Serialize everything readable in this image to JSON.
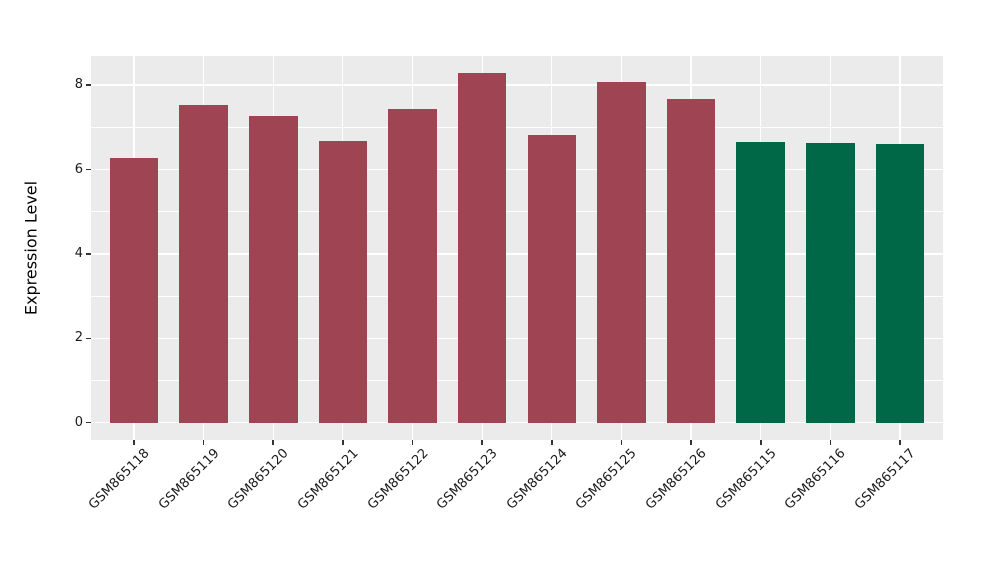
{
  "chart_data": {
    "type": "bar",
    "title": "",
    "xlabel": "",
    "ylabel": "Expression Level",
    "categories": [
      "GSM865118",
      "GSM865119",
      "GSM865120",
      "GSM865121",
      "GSM865122",
      "GSM865123",
      "GSM865124",
      "GSM865125",
      "GSM865126",
      "GSM865115",
      "GSM865116",
      "GSM865117"
    ],
    "values": [
      6.28,
      7.53,
      7.27,
      6.68,
      7.43,
      8.28,
      6.82,
      8.08,
      7.68,
      6.66,
      6.63,
      6.61
    ],
    "bar_colors": [
      "#9E4452",
      "#9E4452",
      "#9E4452",
      "#9E4452",
      "#9E4452",
      "#9E4452",
      "#9E4452",
      "#9E4452",
      "#9E4452",
      "#006747",
      "#006747",
      "#006747"
    ],
    "y_ticks": [
      0,
      2,
      4,
      6,
      8
    ],
    "y_minor_ticks": [
      1,
      3,
      5,
      7
    ],
    "ylim": [
      -0.41,
      8.69
    ],
    "grid": true,
    "legend": false,
    "x_tick_rotation": 45,
    "colors": {
      "group_maroon": "#9E4452",
      "group_green": "#006747",
      "panel_background": "#EBEBEB",
      "gridline": "#FFFFFF",
      "tick_text": "#1A1A1A"
    }
  }
}
